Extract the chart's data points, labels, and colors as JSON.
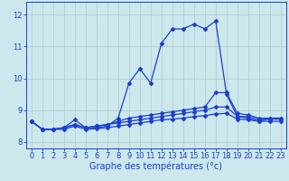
{
  "title": "",
  "xlabel": "Graphe des températures (°c)",
  "ylabel": "",
  "bg_color": "#cde8ec",
  "line_color": "#1a3ecf",
  "grid_color": "#a8c8d0",
  "xlim": [
    -0.5,
    23.5
  ],
  "ylim": [
    7.8,
    12.4
  ],
  "yticks": [
    8,
    9,
    10,
    11,
    12
  ],
  "xticks": [
    0,
    1,
    2,
    3,
    4,
    5,
    6,
    7,
    8,
    9,
    10,
    11,
    12,
    13,
    14,
    15,
    16,
    17,
    18,
    19,
    20,
    21,
    22,
    23
  ],
  "series": [
    {
      "x": [
        0,
        1,
        2,
        3,
        4,
        5,
        6,
        7,
        8,
        9,
        10,
        11,
        12,
        13,
        14,
        15,
        16,
        17,
        18,
        19,
        20,
        21,
        22,
        23
      ],
      "y": [
        8.65,
        8.4,
        8.4,
        8.45,
        8.7,
        8.45,
        8.45,
        8.5,
        8.75,
        9.85,
        10.3,
        9.85,
        11.1,
        11.55,
        11.55,
        11.7,
        11.55,
        11.8,
        9.5,
        8.8,
        8.75,
        8.65,
        8.75,
        8.75
      ]
    },
    {
      "x": [
        0,
        1,
        2,
        3,
        4,
        5,
        6,
        7,
        8,
        9,
        10,
        11,
        12,
        13,
        14,
        15,
        16,
        17,
        18,
        19,
        20,
        21,
        22,
        23
      ],
      "y": [
        8.65,
        8.4,
        8.4,
        8.45,
        8.55,
        8.45,
        8.5,
        8.55,
        8.65,
        8.75,
        8.8,
        8.85,
        8.9,
        8.95,
        9.0,
        9.05,
        9.1,
        9.55,
        9.55,
        8.9,
        8.85,
        8.75,
        8.75,
        8.75
      ]
    },
    {
      "x": [
        0,
        1,
        2,
        3,
        4,
        5,
        6,
        7,
        8,
        9,
        10,
        11,
        12,
        13,
        14,
        15,
        16,
        17,
        18,
        19,
        20,
        21,
        22,
        23
      ],
      "y": [
        8.65,
        8.4,
        8.4,
        8.45,
        8.55,
        8.45,
        8.5,
        8.55,
        8.6,
        8.65,
        8.7,
        8.75,
        8.8,
        8.85,
        8.9,
        8.95,
        9.0,
        9.1,
        9.1,
        8.8,
        8.8,
        8.7,
        8.72,
        8.72
      ]
    },
    {
      "x": [
        0,
        1,
        2,
        3,
        4,
        5,
        6,
        7,
        8,
        9,
        10,
        11,
        12,
        13,
        14,
        15,
        16,
        17,
        18,
        19,
        20,
        21,
        22,
        23
      ],
      "y": [
        8.65,
        8.4,
        8.4,
        8.4,
        8.5,
        8.4,
        8.42,
        8.45,
        8.5,
        8.55,
        8.6,
        8.65,
        8.7,
        8.72,
        8.75,
        8.8,
        8.83,
        8.88,
        8.9,
        8.72,
        8.7,
        8.65,
        8.65,
        8.65
      ]
    }
  ],
  "marker": "D",
  "markersize": 2.0,
  "linewidth": 0.9,
  "xlabel_fontsize": 7.0,
  "tick_fontsize": 6.0
}
